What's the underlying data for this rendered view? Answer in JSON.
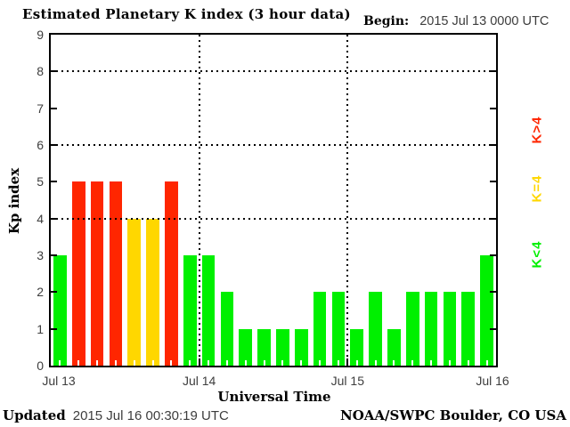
{
  "header": {
    "begin_label": "Begin:",
    "begin_value": "2015 Jul 13 0000 UTC"
  },
  "footer": {
    "updated_label": "Updated",
    "updated_value": "2015 Jul 16 00:30:19 UTC",
    "credit": "NOAA/SWPC Boulder, CO USA"
  },
  "chart_data": {
    "type": "bar",
    "title": "Estimated Planetary K index (3 hour data)",
    "xlabel": "Universal Time",
    "ylabel": "Kp index",
    "ylim": [
      0,
      9
    ],
    "y_ticks": [
      0,
      1,
      2,
      3,
      4,
      5,
      6,
      7,
      8,
      9
    ],
    "grid_y_dotted": [
      4,
      6,
      8
    ],
    "x_ticks": [
      "Jul 13",
      "Jul 14",
      "Jul 15",
      "Jul 16"
    ],
    "hours_per_bar": 3,
    "bars_per_day": 8,
    "values": [
      3,
      5,
      5,
      5,
      4,
      4,
      5,
      3,
      3,
      2,
      1,
      1,
      1,
      1,
      2,
      2,
      1,
      2,
      1,
      2,
      2,
      2,
      2,
      3
    ],
    "colors": {
      "k_lt_4": "#00f000",
      "k_eq_4": "#ffd700",
      "k_gt_4": "#ff2600"
    },
    "legend": [
      {
        "label": "K>4",
        "color": "#ff2600"
      },
      {
        "label": "K=4",
        "color": "#ffd700"
      },
      {
        "label": "K<4",
        "color": "#00f000"
      }
    ],
    "legend_position": "right",
    "grid": "dotted"
  }
}
